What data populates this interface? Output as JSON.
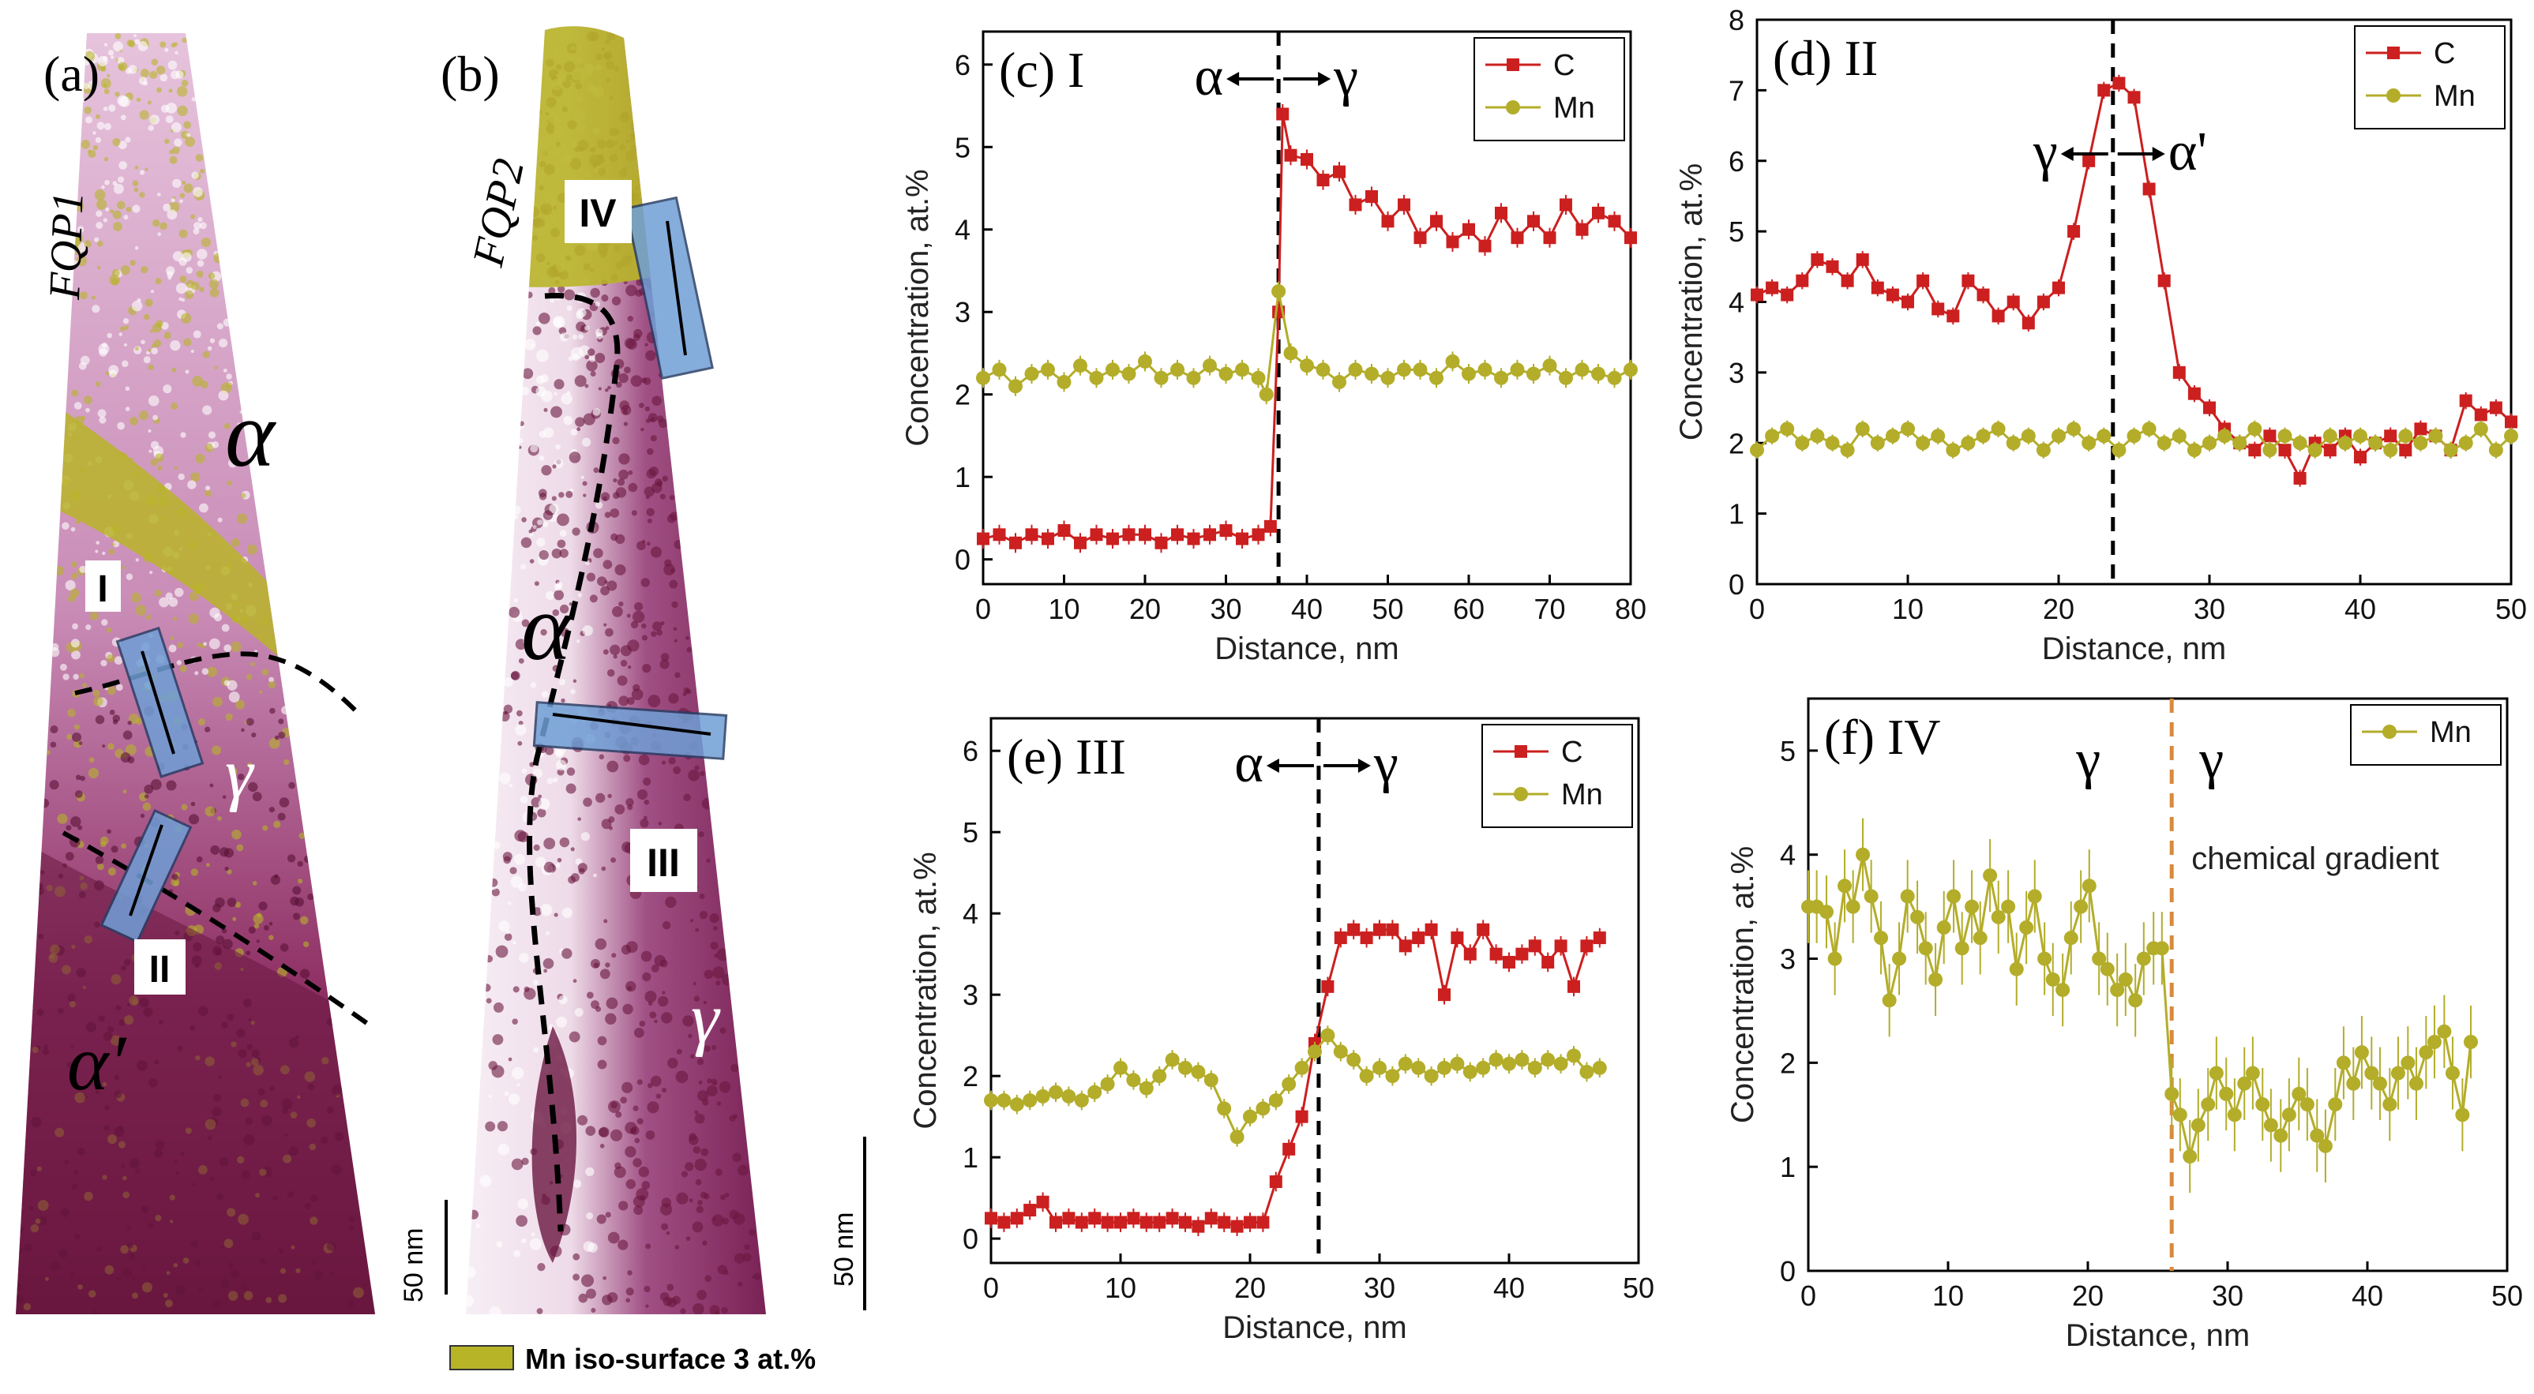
{
  "tomographs": {
    "a": {
      "label": "(a)",
      "name": "FQP1",
      "phases": [
        "α",
        "γ",
        "α′"
      ],
      "rois": [
        "I",
        "II"
      ]
    },
    "b": {
      "label": "(b)",
      "name": "FQP2",
      "phases": [
        "α",
        "γ"
      ],
      "rois": [
        "IV",
        "III"
      ]
    },
    "scale_bar": "50 nm",
    "legend": "Mn iso-surface 3 at.%",
    "colors": {
      "matrix": "#7a1e4a",
      "iso": "#b8b428",
      "roi": "#6f9fd6",
      "boundary": "#000000"
    }
  },
  "chart_data": [
    {
      "id": "c",
      "type": "line",
      "panel_label": "(c) I",
      "annotation": {
        "left": "α",
        "right": "γ"
      },
      "xlabel": "Distance, nm",
      "ylabel": "Concentration, at.%",
      "xlim": [
        0,
        80
      ],
      "ylim": [
        -0.3,
        6.4
      ],
      "xticks": [
        0,
        10,
        20,
        30,
        40,
        50,
        60,
        70,
        80
      ],
      "yticks": [
        0,
        1,
        2,
        3,
        4,
        5,
        6
      ],
      "interface_x": 36.5,
      "interface_color": "#000000",
      "legend_position": "top-right",
      "series": [
        {
          "name": "C",
          "color": "#cc1f1f",
          "marker": "square",
          "x": [
            0,
            2,
            4,
            6,
            8,
            10,
            12,
            14,
            16,
            18,
            20,
            22,
            24,
            26,
            28,
            30,
            32,
            34,
            35.5,
            36.5,
            37,
            38,
            40,
            42,
            44,
            46,
            48,
            50,
            52,
            54,
            56,
            58,
            60,
            62,
            64,
            66,
            68,
            70,
            72,
            74,
            76,
            78,
            80
          ],
          "y": [
            0.25,
            0.3,
            0.2,
            0.3,
            0.25,
            0.35,
            0.2,
            0.3,
            0.25,
            0.3,
            0.3,
            0.2,
            0.3,
            0.25,
            0.3,
            0.35,
            0.25,
            0.3,
            0.4,
            3.0,
            5.4,
            4.9,
            4.85,
            4.6,
            4.7,
            4.3,
            4.4,
            4.1,
            4.3,
            3.9,
            4.1,
            3.85,
            4.0,
            3.8,
            4.2,
            3.9,
            4.1,
            3.9,
            4.3,
            4.0,
            4.2,
            4.1,
            3.9
          ]
        },
        {
          "name": "Mn",
          "color": "#b3ad2a",
          "marker": "circle",
          "x": [
            0,
            2,
            4,
            6,
            8,
            10,
            12,
            14,
            16,
            18,
            20,
            22,
            24,
            26,
            28,
            30,
            32,
            34,
            35,
            36.5,
            38,
            40,
            42,
            44,
            46,
            48,
            50,
            52,
            54,
            56,
            58,
            60,
            62,
            64,
            66,
            68,
            70,
            72,
            74,
            76,
            78,
            80
          ],
          "y": [
            2.2,
            2.3,
            2.1,
            2.25,
            2.3,
            2.15,
            2.35,
            2.2,
            2.3,
            2.25,
            2.4,
            2.2,
            2.3,
            2.2,
            2.35,
            2.25,
            2.3,
            2.2,
            2.0,
            3.25,
            2.5,
            2.35,
            2.3,
            2.15,
            2.3,
            2.25,
            2.2,
            2.3,
            2.3,
            2.2,
            2.4,
            2.25,
            2.3,
            2.2,
            2.3,
            2.25,
            2.35,
            2.2,
            2.3,
            2.25,
            2.2,
            2.3
          ]
        }
      ]
    },
    {
      "id": "d",
      "type": "line",
      "panel_label": "(d) II",
      "annotation": {
        "left": "γ",
        "right": "α'"
      },
      "xlabel": "Distance, nm",
      "ylabel": "Concentration, at.%",
      "xlim": [
        0,
        50
      ],
      "ylim": [
        0,
        8
      ],
      "xticks": [
        0,
        10,
        20,
        30,
        40,
        50
      ],
      "yticks": [
        0,
        1,
        2,
        3,
        4,
        5,
        6,
        7,
        8
      ],
      "interface_x": 23.6,
      "interface_color": "#000000",
      "legend_position": "top-right",
      "series": [
        {
          "name": "C",
          "color": "#cc1f1f",
          "marker": "square",
          "x": [
            0,
            1,
            2,
            3,
            4,
            5,
            6,
            7,
            8,
            9,
            10,
            11,
            12,
            13,
            14,
            15,
            16,
            17,
            18,
            19,
            20,
            21,
            22,
            23,
            24,
            25,
            26,
            27,
            28,
            29,
            30,
            31,
            32,
            33,
            34,
            35,
            36,
            37,
            38,
            39,
            40,
            41,
            42,
            43,
            44,
            45,
            46,
            47,
            48,
            49,
            50
          ],
          "y": [
            4.1,
            4.2,
            4.1,
            4.3,
            4.6,
            4.5,
            4.3,
            4.6,
            4.2,
            4.1,
            4.0,
            4.3,
            3.9,
            3.8,
            4.3,
            4.1,
            3.8,
            4.0,
            3.7,
            4.0,
            4.2,
            5.0,
            6.0,
            7.0,
            7.1,
            6.9,
            5.6,
            4.3,
            3.0,
            2.7,
            2.5,
            2.2,
            2.0,
            1.9,
            2.1,
            1.9,
            1.5,
            2.0,
            1.9,
            2.1,
            1.8,
            2.0,
            2.1,
            1.9,
            2.2,
            2.1,
            1.9,
            2.6,
            2.4,
            2.5,
            2.3
          ]
        },
        {
          "name": "Mn",
          "color": "#b3ad2a",
          "marker": "circle",
          "x": [
            0,
            1,
            2,
            3,
            4,
            5,
            6,
            7,
            8,
            9,
            10,
            11,
            12,
            13,
            14,
            15,
            16,
            17,
            18,
            19,
            20,
            21,
            22,
            23,
            24,
            25,
            26,
            27,
            28,
            29,
            30,
            31,
            32,
            33,
            34,
            35,
            36,
            37,
            38,
            39,
            40,
            41,
            42,
            43,
            44,
            45,
            46,
            47,
            48,
            49,
            50
          ],
          "y": [
            1.9,
            2.1,
            2.2,
            2.0,
            2.1,
            2.0,
            1.9,
            2.2,
            2.0,
            2.1,
            2.2,
            2.0,
            2.1,
            1.9,
            2.0,
            2.1,
            2.2,
            2.0,
            2.1,
            1.9,
            2.1,
            2.2,
            2.0,
            2.1,
            1.9,
            2.1,
            2.2,
            2.0,
            2.1,
            1.9,
            2.0,
            2.1,
            2.0,
            2.2,
            1.9,
            2.1,
            2.0,
            1.9,
            2.1,
            2.0,
            2.1,
            2.0,
            1.9,
            2.1,
            2.0,
            2.1,
            1.9,
            2.0,
            2.2,
            1.9,
            2.1
          ]
        }
      ]
    },
    {
      "id": "e",
      "type": "line",
      "panel_label": "(e) III",
      "annotation": {
        "left": "α",
        "right": "γ"
      },
      "xlabel": "Distance, nm",
      "ylabel": "Concentration, at.%",
      "xlim": [
        0,
        50
      ],
      "ylim": [
        -0.3,
        6.4
      ],
      "xticks": [
        0,
        10,
        20,
        30,
        40,
        50
      ],
      "yticks": [
        0,
        1,
        2,
        3,
        4,
        5,
        6
      ],
      "interface_x": 25.3,
      "interface_color": "#000000",
      "legend_position": "top-right",
      "series": [
        {
          "name": "C",
          "color": "#cc1f1f",
          "marker": "square",
          "x": [
            0,
            1,
            2,
            3,
            4,
            5,
            6,
            7,
            8,
            9,
            10,
            11,
            12,
            13,
            14,
            15,
            16,
            17,
            18,
            19,
            20,
            21,
            22,
            23,
            24,
            25,
            26,
            27,
            28,
            29,
            30,
            31,
            32,
            33,
            34,
            35,
            36,
            37,
            38,
            39,
            40,
            41,
            42,
            43,
            44,
            45,
            46,
            47
          ],
          "y": [
            0.25,
            0.2,
            0.25,
            0.35,
            0.45,
            0.2,
            0.25,
            0.2,
            0.25,
            0.2,
            0.2,
            0.25,
            0.2,
            0.2,
            0.25,
            0.2,
            0.15,
            0.25,
            0.2,
            0.15,
            0.2,
            0.2,
            0.7,
            1.1,
            1.5,
            2.4,
            3.1,
            3.7,
            3.8,
            3.7,
            3.8,
            3.8,
            3.6,
            3.7,
            3.8,
            3.0,
            3.7,
            3.5,
            3.8,
            3.5,
            3.4,
            3.5,
            3.6,
            3.4,
            3.6,
            3.1,
            3.6,
            3.7
          ]
        },
        {
          "name": "Mn",
          "color": "#b3ad2a",
          "marker": "circle",
          "x": [
            0,
            1,
            2,
            3,
            4,
            5,
            6,
            7,
            8,
            9,
            10,
            11,
            12,
            13,
            14,
            15,
            16,
            17,
            18,
            19,
            20,
            21,
            22,
            23,
            24,
            25,
            26,
            27,
            28,
            29,
            30,
            31,
            32,
            33,
            34,
            35,
            36,
            37,
            38,
            39,
            40,
            41,
            42,
            43,
            44,
            45,
            46,
            47
          ],
          "y": [
            1.7,
            1.7,
            1.65,
            1.7,
            1.75,
            1.8,
            1.75,
            1.7,
            1.8,
            1.9,
            2.1,
            1.95,
            1.85,
            2.0,
            2.2,
            2.1,
            2.05,
            1.95,
            1.6,
            1.25,
            1.5,
            1.6,
            1.7,
            1.9,
            2.1,
            2.3,
            2.5,
            2.3,
            2.2,
            2.0,
            2.1,
            2.0,
            2.15,
            2.1,
            2.0,
            2.1,
            2.15,
            2.05,
            2.1,
            2.2,
            2.15,
            2.2,
            2.1,
            2.2,
            2.15,
            2.25,
            2.05,
            2.1
          ]
        }
      ]
    },
    {
      "id": "f",
      "type": "line",
      "panel_label": "(f) IV",
      "annotation": {
        "left": "γ",
        "right": "γ",
        "note": "chemical gradient"
      },
      "xlabel": "Distance, nm",
      "ylabel": "Concentration, at.%",
      "xlim": [
        0,
        50
      ],
      "ylim": [
        0,
        5.5
      ],
      "xticks": [
        0,
        10,
        20,
        30,
        40,
        50
      ],
      "yticks": [
        0,
        1,
        2,
        3,
        4,
        5
      ],
      "interface_x": 26,
      "interface_color": "#d98a3a",
      "legend_position": "top-right",
      "series": [
        {
          "name": "Mn",
          "color": "#b3ad2a",
          "marker": "circle",
          "x": [
            0,
            0.6,
            1.3,
            1.9,
            2.6,
            3.2,
            3.9,
            4.5,
            5.2,
            5.8,
            6.5,
            7.1,
            7.8,
            8.4,
            9.1,
            9.7,
            10.4,
            11,
            11.7,
            12.3,
            13,
            13.6,
            14.3,
            14.9,
            15.6,
            16.2,
            16.9,
            17.5,
            18.2,
            18.8,
            19.5,
            20.1,
            20.8,
            21.4,
            22.1,
            22.7,
            23.4,
            24,
            24.7,
            25.3,
            26,
            26.6,
            27.3,
            27.9,
            28.6,
            29.2,
            29.9,
            30.5,
            31.2,
            31.8,
            32.5,
            33.1,
            33.8,
            34.4,
            35.1,
            35.7,
            36.4,
            37,
            37.7,
            38.3,
            39,
            39.6,
            40.3,
            40.9,
            41.6,
            42.2,
            42.9,
            43.5,
            44.2,
            44.8,
            45.5,
            46.1,
            46.8,
            47.4
          ],
          "y": [
            3.5,
            3.5,
            3.45,
            3.0,
            3.7,
            3.5,
            4.0,
            3.6,
            3.2,
            2.6,
            3.0,
            3.6,
            3.4,
            3.1,
            2.8,
            3.3,
            3.6,
            3.1,
            3.5,
            3.2,
            3.8,
            3.4,
            3.5,
            2.9,
            3.3,
            3.6,
            3.0,
            2.8,
            2.7,
            3.2,
            3.5,
            3.7,
            3.0,
            2.9,
            2.7,
            2.8,
            2.6,
            3.0,
            3.1,
            3.1,
            1.7,
            1.5,
            1.1,
            1.4,
            1.6,
            1.9,
            1.7,
            1.5,
            1.8,
            1.9,
            1.6,
            1.4,
            1.3,
            1.5,
            1.7,
            1.6,
            1.3,
            1.2,
            1.6,
            2.0,
            1.8,
            2.1,
            1.9,
            1.8,
            1.6,
            1.9,
            2.0,
            1.8,
            2.1,
            2.2,
            2.3,
            1.9,
            1.5,
            2.2
          ]
        }
      ]
    }
  ]
}
